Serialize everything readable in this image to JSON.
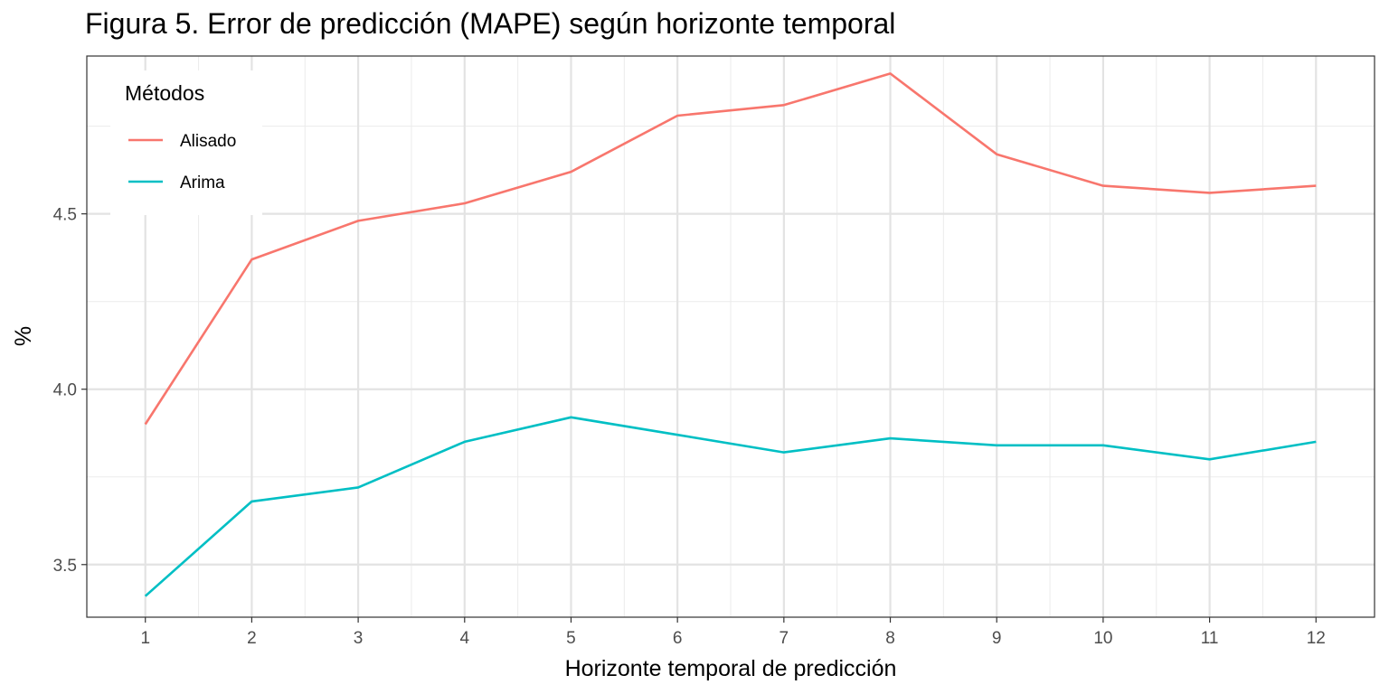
{
  "chart_data": {
    "type": "line",
    "title": "Figura 5. Error de predicción (MAPE) según horizonte temporal",
    "xlabel": "Horizonte temporal de predicción",
    "ylabel": "%",
    "x": [
      1,
      2,
      3,
      4,
      5,
      6,
      7,
      8,
      9,
      10,
      11,
      12
    ],
    "xlim": [
      0.45,
      12.55
    ],
    "ylim": [
      3.35,
      4.95
    ],
    "yticks": [
      3.5,
      4.0,
      4.5
    ],
    "ytick_labels": [
      "3.5",
      "4.0",
      "4.5"
    ],
    "grid": true,
    "legend": {
      "title": "Métodos",
      "position": "top-left"
    },
    "series": [
      {
        "name": "Alisado",
        "color": "#F8766D",
        "values": [
          3.9,
          4.37,
          4.48,
          4.53,
          4.62,
          4.78,
          4.81,
          4.9,
          4.67,
          4.58,
          4.56,
          4.58
        ]
      },
      {
        "name": "Arima",
        "color": "#00BFC4",
        "values": [
          3.41,
          3.68,
          3.72,
          3.85,
          3.92,
          3.87,
          3.82,
          3.86,
          3.84,
          3.84,
          3.8,
          3.85
        ]
      }
    ]
  }
}
